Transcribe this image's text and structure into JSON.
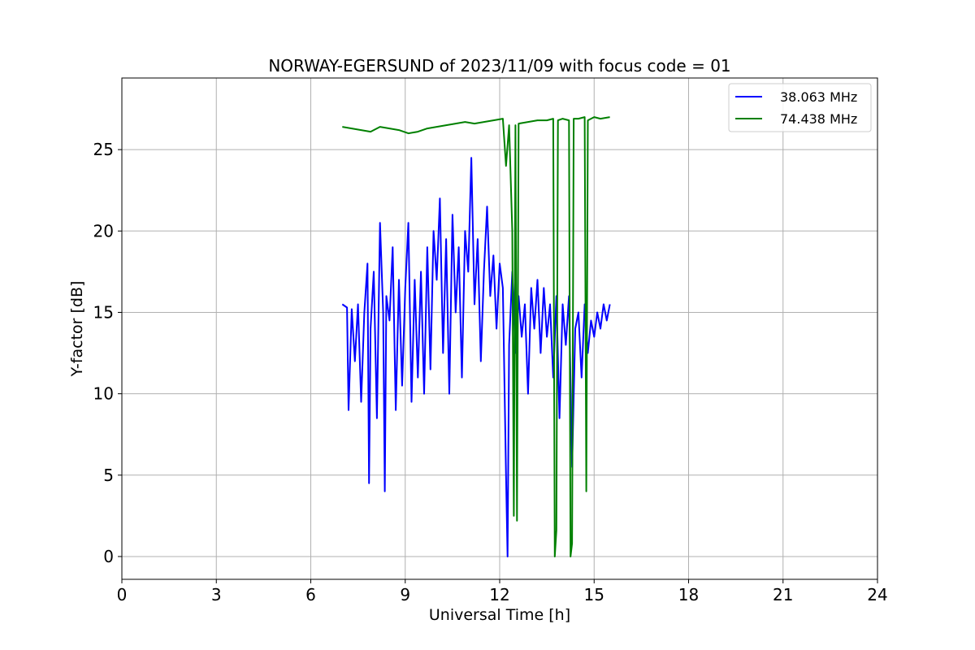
{
  "chart_data": {
    "type": "line",
    "title": "NORWAY-EGERSUND of 2023/11/09 with focus code = 01",
    "xlabel": "Universal Time [h]",
    "ylabel": "Y-factor [dB]",
    "xlim": [
      0,
      24
    ],
    "ylim": [
      -1.4,
      29.4
    ],
    "xticks": [
      0,
      3,
      6,
      9,
      12,
      15,
      18,
      21,
      24
    ],
    "yticks": [
      0,
      5,
      10,
      15,
      20,
      25
    ],
    "grid": true,
    "legend_position": "top-right",
    "series": [
      {
        "name": "38.063 MHz",
        "color": "#0000ff",
        "x": [
          7.0,
          7.15,
          7.2,
          7.3,
          7.4,
          7.5,
          7.6,
          7.7,
          7.8,
          7.85,
          7.9,
          8.0,
          8.1,
          8.2,
          8.3,
          8.35,
          8.4,
          8.5,
          8.6,
          8.7,
          8.8,
          8.9,
          9.0,
          9.1,
          9.2,
          9.3,
          9.4,
          9.5,
          9.6,
          9.7,
          9.8,
          9.9,
          10.0,
          10.1,
          10.2,
          10.3,
          10.4,
          10.5,
          10.6,
          10.7,
          10.8,
          10.9,
          11.0,
          11.1,
          11.2,
          11.3,
          11.4,
          11.5,
          11.6,
          11.7,
          11.8,
          11.9,
          12.0,
          12.1,
          12.2,
          12.25,
          12.3,
          12.4,
          12.5,
          12.6,
          12.7,
          12.8,
          12.9,
          13.0,
          13.1,
          13.2,
          13.3,
          13.4,
          13.5,
          13.6,
          13.7,
          13.8,
          13.9,
          14.0,
          14.1,
          14.2,
          14.3,
          14.4,
          14.5,
          14.6,
          14.7,
          14.8,
          14.9,
          15.0,
          15.1,
          15.2,
          15.3,
          15.4,
          15.5
        ],
        "y": [
          15.5,
          15.3,
          9.0,
          15.2,
          12.0,
          15.5,
          9.5,
          15.0,
          18.0,
          4.5,
          14.0,
          17.5,
          8.5,
          20.5,
          15.0,
          4.0,
          16.0,
          14.5,
          19.0,
          9.0,
          17.0,
          10.5,
          16.5,
          20.5,
          9.5,
          17.0,
          11.0,
          17.5,
          10.0,
          19.0,
          11.5,
          20.0,
          17.0,
          22.0,
          12.5,
          19.5,
          10.0,
          21.0,
          15.0,
          19.0,
          11.0,
          20.0,
          17.5,
          24.5,
          15.5,
          19.5,
          12.0,
          17.5,
          21.5,
          16.0,
          18.5,
          14.0,
          18.0,
          16.5,
          5.0,
          0.0,
          13.0,
          17.5,
          12.5,
          16.0,
          13.5,
          15.5,
          10.0,
          16.5,
          14.0,
          17.0,
          12.5,
          16.5,
          13.5,
          15.5,
          11.0,
          16.0,
          8.5,
          15.5,
          13.0,
          16.0,
          5.5,
          14.0,
          15.0,
          11.0,
          15.5,
          12.5,
          14.5,
          13.5,
          15.0,
          14.0,
          15.5,
          14.5,
          15.5
        ]
      },
      {
        "name": "74.438 MHz",
        "color": "#008000",
        "x": [
          7.0,
          7.3,
          7.6,
          7.9,
          8.2,
          8.5,
          8.8,
          9.1,
          9.4,
          9.7,
          10.0,
          10.3,
          10.6,
          10.9,
          11.2,
          11.5,
          11.8,
          12.1,
          12.2,
          12.3,
          12.4,
          12.45,
          12.5,
          12.55,
          12.6,
          12.9,
          13.2,
          13.5,
          13.7,
          13.75,
          13.8,
          13.85,
          14.0,
          14.2,
          14.25,
          14.3,
          14.35,
          14.5,
          14.7,
          14.75,
          14.8,
          15.0,
          15.2,
          15.5
        ],
        "y": [
          26.4,
          26.3,
          26.2,
          26.1,
          26.4,
          26.3,
          26.2,
          26.0,
          26.1,
          26.3,
          26.4,
          26.5,
          26.6,
          26.7,
          26.6,
          26.7,
          26.8,
          26.9,
          24.0,
          26.5,
          20.0,
          2.5,
          26.5,
          2.2,
          26.6,
          26.7,
          26.8,
          26.8,
          26.9,
          0.0,
          1.6,
          26.8,
          26.9,
          26.8,
          0.0,
          0.8,
          26.9,
          26.9,
          27.0,
          4.0,
          26.8,
          27.0,
          26.9,
          27.0
        ]
      }
    ]
  }
}
